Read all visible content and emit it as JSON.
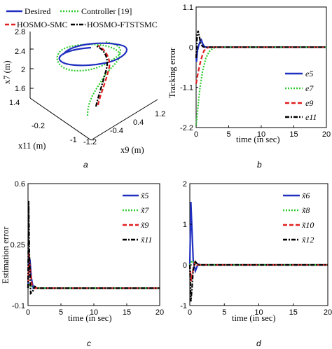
{
  "chart_data": [
    {
      "id": "a",
      "type": "line3d",
      "caption": "a",
      "xlabel": "x11 (m)",
      "ylabel": "x9 (m)",
      "zlabel": "x7 (m)",
      "x_ticks": [
        "1.4",
        "-0.2",
        "-1"
      ],
      "y_ticks": [
        "-1.2",
        "-0.4",
        "0.4",
        "1.2"
      ],
      "z_ticks": [
        "1.6",
        "2",
        "2.4",
        "2.8"
      ],
      "legend": [
        {
          "name": "Desired",
          "color": "#1f2fbf",
          "dash": "solid"
        },
        {
          "name": "Controller [19]",
          "color": "#2ecc2e",
          "dash": "dot"
        },
        {
          "name": "HOSMO-SMC",
          "color": "#e02020",
          "dash": "dash"
        },
        {
          "name": "HOSMO-FTSTSMC",
          "color": "#000000",
          "dash": "dashdot"
        }
      ]
    },
    {
      "id": "b",
      "type": "line",
      "caption": "b",
      "xlabel": "time (in sec)",
      "ylabel": "Tracking error",
      "xlim": [
        0,
        20
      ],
      "ylim": [
        -2.2,
        1.1
      ],
      "x_ticks": [
        "0",
        "5",
        "10",
        "15",
        "20"
      ],
      "y_ticks": [
        "-2.2",
        "-1.1",
        "0",
        "1.1"
      ],
      "y_tick_values": [
        -2.2,
        -1.1,
        0,
        1.1
      ],
      "series": [
        {
          "name": "e5",
          "color": "#1f2fbf",
          "dash": "solid",
          "x": [
            0,
            0.05,
            0.2,
            0.4,
            0.6,
            0.8,
            1.0,
            1.2,
            1.5,
            2,
            20
          ],
          "y": [
            -0.2,
            -0.4,
            -0.1,
            0.05,
            0.15,
            0.2,
            0.1,
            0.03,
            0,
            0,
            0
          ]
        },
        {
          "name": "e7",
          "color": "#2ecc2e",
          "dash": "dot",
          "x": [
            0,
            0.3,
            0.6,
            1.0,
            1.5,
            2.0,
            2.5,
            3.0,
            3.5,
            20
          ],
          "y": [
            -2.15,
            -1.6,
            -1.1,
            -0.65,
            -0.3,
            -0.12,
            -0.04,
            0,
            0,
            0
          ]
        },
        {
          "name": "e9",
          "color": "#e02020",
          "dash": "dash",
          "x": [
            0,
            0.3,
            0.6,
            0.9,
            1.2,
            1.6,
            2.0,
            20
          ],
          "y": [
            -1.0,
            -0.7,
            -0.45,
            -0.25,
            -0.1,
            -0.03,
            0,
            0
          ]
        },
        {
          "name": "e11",
          "color": "#000000",
          "dash": "dashdot",
          "x": [
            0,
            0.15,
            0.3,
            0.5,
            0.7,
            1.0,
            1.3,
            20
          ],
          "y": [
            -0.3,
            0.3,
            0.45,
            0.3,
            0.1,
            0.02,
            0,
            0
          ]
        }
      ],
      "legend": [
        "e5",
        "e7",
        "e9",
        "e11"
      ]
    },
    {
      "id": "c",
      "type": "line",
      "caption": "c",
      "xlabel": "time (in sec)",
      "ylabel": "Estimation error",
      "xlim": [
        0,
        20
      ],
      "ylim": [
        -0.1,
        0.6
      ],
      "x_ticks": [
        "0",
        "5",
        "10",
        "15",
        "20"
      ],
      "y_ticks": [
        "-0.1",
        "0.25",
        "0.6"
      ],
      "y_tick_values": [
        -0.1,
        0.25,
        0.6
      ],
      "series": [
        {
          "name": "x̃5",
          "color": "#1f2fbf",
          "dash": "solid",
          "x": [
            0,
            0.15,
            0.3,
            0.5,
            0.8,
            1.2,
            20
          ],
          "y": [
            0.0,
            0.18,
            0.16,
            0.06,
            0.0,
            0.0,
            0.0
          ]
        },
        {
          "name": "x̃7",
          "color": "#2ecc2e",
          "dash": "dot",
          "x": [
            0,
            0.2,
            0.5,
            1.0,
            20
          ],
          "y": [
            0.0,
            0.02,
            0.01,
            0.0,
            0.0
          ]
        },
        {
          "name": "x̃9",
          "color": "#e02020",
          "dash": "dash",
          "x": [
            0,
            0.15,
            0.3,
            0.6,
            1.0,
            20
          ],
          "y": [
            0.0,
            0.2,
            0.12,
            0.02,
            0.0,
            0.0
          ]
        },
        {
          "name": "x̃11",
          "color": "#000000",
          "dash": "dashdot",
          "x": [
            0,
            0.1,
            0.2,
            0.4,
            0.7,
            1.0,
            1.5,
            20
          ],
          "y": [
            0.0,
            0.5,
            0.2,
            -0.03,
            -0.02,
            0.01,
            0.0,
            0.0
          ]
        }
      ],
      "legend": [
        "x̃5",
        "x̃7",
        "x̃9",
        "x̃11"
      ]
    },
    {
      "id": "d",
      "type": "line",
      "caption": "d",
      "xlabel": "time (in sec)",
      "ylabel": "",
      "xlim": [
        0,
        20
      ],
      "ylim": [
        -1,
        2
      ],
      "x_ticks": [
        "0",
        "5",
        "10",
        "15",
        "20"
      ],
      "y_ticks": [
        "-1",
        "0",
        "1",
        "2"
      ],
      "y_tick_values": [
        -1,
        0,
        1,
        2
      ],
      "series": [
        {
          "name": "x̃6",
          "color": "#1f2fbf",
          "dash": "solid",
          "x": [
            0,
            0.15,
            0.3,
            0.5,
            0.8,
            1.2,
            1.6,
            20
          ],
          "y": [
            0,
            1.55,
            0.9,
            0.1,
            -0.15,
            0.02,
            0,
            0
          ]
        },
        {
          "name": "x̃8",
          "color": "#2ecc2e",
          "dash": "dot",
          "x": [
            0,
            0.3,
            0.6,
            1.0,
            20
          ],
          "y": [
            0,
            0.1,
            0.05,
            0,
            0
          ]
        },
        {
          "name": "x̃10",
          "color": "#e02020",
          "dash": "dash",
          "x": [
            0,
            0.2,
            0.4,
            0.7,
            1.0,
            20
          ],
          "y": [
            0,
            -0.4,
            -0.2,
            0.05,
            0,
            0
          ]
        },
        {
          "name": "x̃12",
          "color": "#000000",
          "dash": "dashdot",
          "x": [
            0,
            0.15,
            0.3,
            0.5,
            0.8,
            1.2,
            20
          ],
          "y": [
            0,
            -0.9,
            -0.6,
            -0.1,
            0.08,
            0,
            0
          ]
        }
      ],
      "legend": [
        "x̃6",
        "x̃8",
        "x̃10",
        "x̃12"
      ]
    }
  ]
}
